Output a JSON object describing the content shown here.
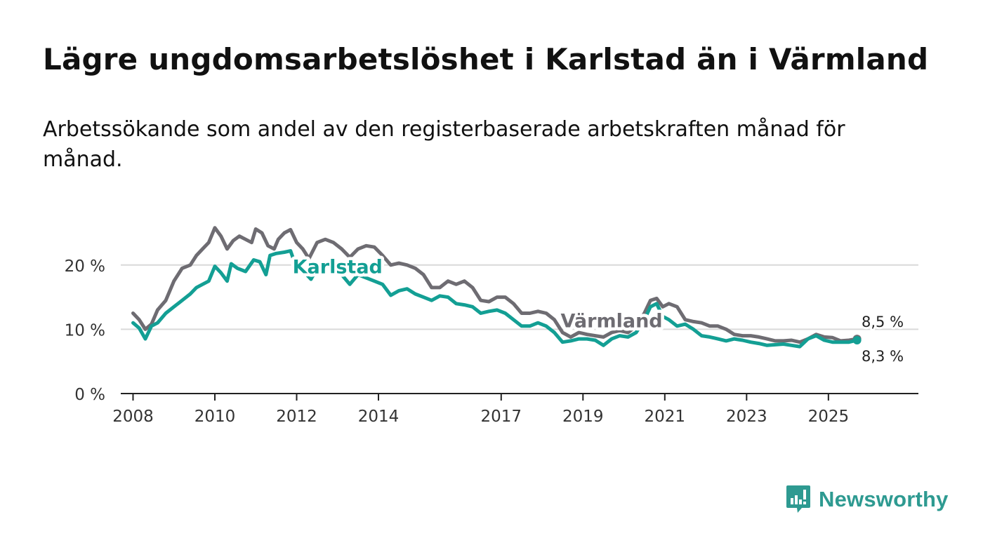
{
  "title": "Lägre ungdomsarbetslöshet i Karlstad än i Värmland",
  "subtitle": "Arbetssökande som andel av den registerbaserade arbetskraften månad för månad.",
  "brand": {
    "name": "Newsworthy",
    "color": "#2e9a91"
  },
  "chart_data": {
    "type": "line",
    "title": "Lägre ungdomsarbetslöshet i Karlstad än i Värmland",
    "xlabel": "",
    "ylabel": "",
    "ylim": [
      0,
      25
    ],
    "xlim": [
      2007.7,
      2027.2
    ],
    "y_ticks": [
      0,
      10,
      20
    ],
    "y_tick_labels": [
      "0 %",
      "10 %",
      "20 %"
    ],
    "x_ticks": [
      2008,
      2010,
      2012,
      2014,
      2017,
      2019,
      2021,
      2023,
      2025
    ],
    "x_tick_labels": [
      "2008",
      "2010",
      "2012",
      "2014",
      "2017",
      "2019",
      "2021",
      "2023",
      "2025"
    ],
    "grid": true,
    "series": [
      {
        "name": "Värmland",
        "label": "Värmland",
        "color": "#6e6c72",
        "end_label": "8,5 %",
        "points": [
          [
            2008.0,
            12.5
          ],
          [
            2008.15,
            11.5
          ],
          [
            2008.3,
            10.0
          ],
          [
            2008.45,
            10.8
          ],
          [
            2008.6,
            13.0
          ],
          [
            2008.8,
            14.5
          ],
          [
            2009.0,
            17.5
          ],
          [
            2009.2,
            19.5
          ],
          [
            2009.4,
            20.0
          ],
          [
            2009.55,
            21.5
          ],
          [
            2009.7,
            22.5
          ],
          [
            2009.85,
            23.5
          ],
          [
            2010.0,
            25.8
          ],
          [
            2010.15,
            24.5
          ],
          [
            2010.3,
            22.5
          ],
          [
            2010.45,
            23.8
          ],
          [
            2010.6,
            24.5
          ],
          [
            2010.75,
            24.0
          ],
          [
            2010.9,
            23.5
          ],
          [
            2011.0,
            25.6
          ],
          [
            2011.15,
            25.0
          ],
          [
            2011.3,
            23.0
          ],
          [
            2011.45,
            22.5
          ],
          [
            2011.55,
            24.0
          ],
          [
            2011.7,
            25.0
          ],
          [
            2011.85,
            25.5
          ],
          [
            2012.0,
            23.5
          ],
          [
            2012.15,
            22.5
          ],
          [
            2012.3,
            21.0
          ],
          [
            2012.5,
            23.5
          ],
          [
            2012.7,
            24.0
          ],
          [
            2012.9,
            23.5
          ],
          [
            2013.1,
            22.5
          ],
          [
            2013.3,
            21.2
          ],
          [
            2013.5,
            22.5
          ],
          [
            2013.7,
            23.0
          ],
          [
            2013.9,
            22.8
          ],
          [
            2014.1,
            21.5
          ],
          [
            2014.3,
            20.0
          ],
          [
            2014.5,
            20.3
          ],
          [
            2014.7,
            20.0
          ],
          [
            2014.9,
            19.5
          ],
          [
            2015.1,
            18.5
          ],
          [
            2015.3,
            16.5
          ],
          [
            2015.5,
            16.5
          ],
          [
            2015.7,
            17.5
          ],
          [
            2015.9,
            17.0
          ],
          [
            2016.1,
            17.5
          ],
          [
            2016.3,
            16.5
          ],
          [
            2016.5,
            14.5
          ],
          [
            2016.7,
            14.3
          ],
          [
            2016.9,
            15.0
          ],
          [
            2017.1,
            15.0
          ],
          [
            2017.3,
            14.0
          ],
          [
            2017.5,
            12.5
          ],
          [
            2017.7,
            12.5
          ],
          [
            2017.9,
            12.8
          ],
          [
            2018.1,
            12.5
          ],
          [
            2018.3,
            11.5
          ],
          [
            2018.5,
            9.5
          ],
          [
            2018.7,
            8.8
          ],
          [
            2018.9,
            9.5
          ],
          [
            2019.1,
            9.2
          ],
          [
            2019.3,
            9.0
          ],
          [
            2019.5,
            8.8
          ],
          [
            2019.7,
            9.5
          ],
          [
            2019.9,
            9.8
          ],
          [
            2020.1,
            9.5
          ],
          [
            2020.3,
            10.5
          ],
          [
            2020.5,
            12.5
          ],
          [
            2020.65,
            14.5
          ],
          [
            2020.8,
            14.8
          ],
          [
            2020.95,
            13.5
          ],
          [
            2021.1,
            14.0
          ],
          [
            2021.3,
            13.5
          ],
          [
            2021.5,
            11.5
          ],
          [
            2021.7,
            11.2
          ],
          [
            2021.9,
            11.0
          ],
          [
            2022.1,
            10.5
          ],
          [
            2022.3,
            10.5
          ],
          [
            2022.5,
            10.0
          ],
          [
            2022.7,
            9.2
          ],
          [
            2022.9,
            9.0
          ],
          [
            2023.1,
            9.0
          ],
          [
            2023.3,
            8.8
          ],
          [
            2023.5,
            8.5
          ],
          [
            2023.7,
            8.2
          ],
          [
            2023.9,
            8.2
          ],
          [
            2024.1,
            8.3
          ],
          [
            2024.3,
            8.0
          ],
          [
            2024.5,
            8.5
          ],
          [
            2024.7,
            9.2
          ],
          [
            2024.9,
            8.8
          ],
          [
            2025.1,
            8.7
          ],
          [
            2025.3,
            8.2
          ],
          [
            2025.5,
            8.3
          ],
          [
            2025.7,
            8.5
          ]
        ]
      },
      {
        "name": "Karlstad",
        "label": "Karlstad",
        "color": "#139f94",
        "end_label": "8,3 %",
        "points": [
          [
            2008.0,
            11.0
          ],
          [
            2008.15,
            10.2
          ],
          [
            2008.3,
            8.5
          ],
          [
            2008.45,
            10.5
          ],
          [
            2008.6,
            11.0
          ],
          [
            2008.8,
            12.5
          ],
          [
            2009.0,
            13.5
          ],
          [
            2009.2,
            14.5
          ],
          [
            2009.4,
            15.5
          ],
          [
            2009.55,
            16.5
          ],
          [
            2009.7,
            17.0
          ],
          [
            2009.85,
            17.5
          ],
          [
            2010.0,
            19.8
          ],
          [
            2010.15,
            18.8
          ],
          [
            2010.3,
            17.5
          ],
          [
            2010.4,
            20.2
          ],
          [
            2010.55,
            19.5
          ],
          [
            2010.75,
            19.0
          ],
          [
            2010.95,
            20.8
          ],
          [
            2011.1,
            20.5
          ],
          [
            2011.25,
            18.5
          ],
          [
            2011.35,
            21.5
          ],
          [
            2011.5,
            21.8
          ],
          [
            2011.7,
            22.0
          ],
          [
            2011.85,
            22.2
          ],
          [
            2012.0,
            19.5
          ],
          [
            2012.2,
            18.8
          ],
          [
            2012.35,
            17.8
          ],
          [
            2012.5,
            19.5
          ],
          [
            2012.7,
            19.2
          ],
          [
            2012.9,
            19.0
          ],
          [
            2013.1,
            18.5
          ],
          [
            2013.3,
            17.0
          ],
          [
            2013.5,
            18.5
          ],
          [
            2013.7,
            18.0
          ],
          [
            2013.9,
            17.5
          ],
          [
            2014.1,
            17.0
          ],
          [
            2014.3,
            15.3
          ],
          [
            2014.5,
            16.0
          ],
          [
            2014.7,
            16.3
          ],
          [
            2014.9,
            15.5
          ],
          [
            2015.1,
            15.0
          ],
          [
            2015.3,
            14.5
          ],
          [
            2015.5,
            15.2
          ],
          [
            2015.7,
            15.0
          ],
          [
            2015.9,
            14.0
          ],
          [
            2016.1,
            13.8
          ],
          [
            2016.3,
            13.5
          ],
          [
            2016.5,
            12.5
          ],
          [
            2016.7,
            12.8
          ],
          [
            2016.9,
            13.0
          ],
          [
            2017.1,
            12.5
          ],
          [
            2017.3,
            11.5
          ],
          [
            2017.5,
            10.5
          ],
          [
            2017.7,
            10.5
          ],
          [
            2017.9,
            11.0
          ],
          [
            2018.1,
            10.5
          ],
          [
            2018.3,
            9.5
          ],
          [
            2018.5,
            8.0
          ],
          [
            2018.7,
            8.2
          ],
          [
            2018.9,
            8.5
          ],
          [
            2019.1,
            8.5
          ],
          [
            2019.3,
            8.3
          ],
          [
            2019.5,
            7.5
          ],
          [
            2019.7,
            8.5
          ],
          [
            2019.9,
            9.0
          ],
          [
            2020.1,
            8.8
          ],
          [
            2020.3,
            9.5
          ],
          [
            2020.5,
            11.5
          ],
          [
            2020.65,
            13.5
          ],
          [
            2020.8,
            14.0
          ],
          [
            2020.95,
            12.0
          ],
          [
            2021.1,
            11.5
          ],
          [
            2021.3,
            10.5
          ],
          [
            2021.5,
            10.8
          ],
          [
            2021.7,
            10.0
          ],
          [
            2021.9,
            9.0
          ],
          [
            2022.1,
            8.8
          ],
          [
            2022.3,
            8.5
          ],
          [
            2022.5,
            8.2
          ],
          [
            2022.7,
            8.5
          ],
          [
            2022.9,
            8.3
          ],
          [
            2023.1,
            8.0
          ],
          [
            2023.3,
            7.8
          ],
          [
            2023.5,
            7.5
          ],
          [
            2023.7,
            7.6
          ],
          [
            2023.9,
            7.7
          ],
          [
            2024.1,
            7.5
          ],
          [
            2024.3,
            7.3
          ],
          [
            2024.5,
            8.5
          ],
          [
            2024.7,
            9.0
          ],
          [
            2024.9,
            8.3
          ],
          [
            2025.1,
            8.0
          ],
          [
            2025.3,
            8.0
          ],
          [
            2025.5,
            8.0
          ],
          [
            2025.7,
            8.3
          ]
        ]
      }
    ]
  }
}
